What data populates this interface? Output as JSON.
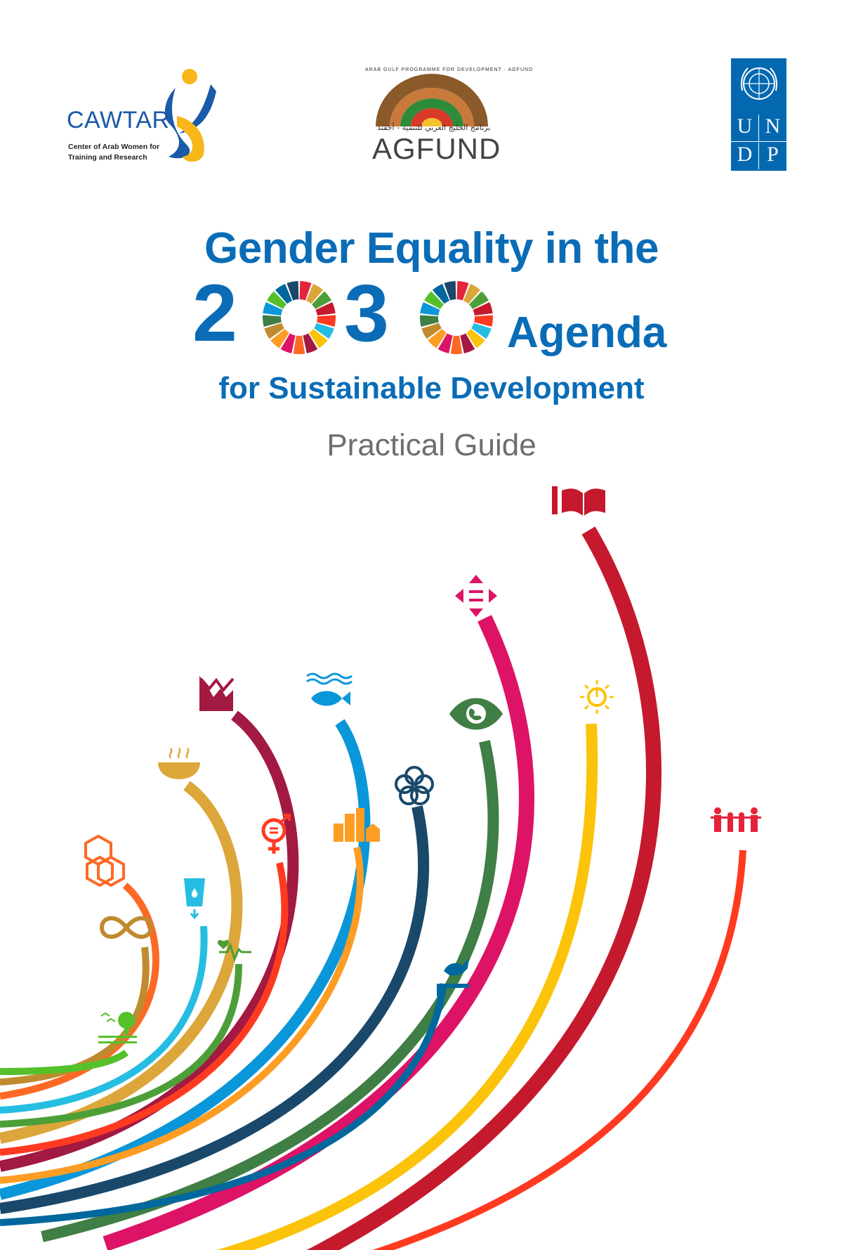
{
  "logos": {
    "cawtar": {
      "name": "CAWTAR",
      "subtitle_line1": "Center of Arab Women for",
      "subtitle_line2": "Training and Research",
      "colors": {
        "text": "#1a5aa8",
        "figure_blue": "#1a5aa8",
        "figure_yellow": "#f7b719"
      }
    },
    "agfund": {
      "name": "AGFUND",
      "arc_text": "ARAB GULF PROGRAMME FOR DEVELOPMENT · AGFUND",
      "arabic_text": "برنامج الخليج العربي للتنمية - أجفند"
    },
    "undp": {
      "letters": [
        "U",
        "N",
        "D",
        "P"
      ],
      "color": "#0468b1"
    }
  },
  "title": {
    "line1": "Gender Equality in the",
    "year_digit1": "2",
    "year_digit2": "3",
    "word_agenda": "Agenda",
    "line3": "for Sustainable Development"
  },
  "subtitle": "Practical Guide",
  "colors": {
    "title": "#0a6cb6",
    "subtitle": "#6d6e71"
  },
  "sdg_colors": [
    "#e5243b",
    "#dda63a",
    "#4c9f38",
    "#c5192d",
    "#ff3a21",
    "#26bde2",
    "#fcc30b",
    "#a21942",
    "#fd6925",
    "#dd1367",
    "#fd9d24",
    "#bf8b2e",
    "#3f7e44",
    "#0a97d9",
    "#56c02b",
    "#00689d",
    "#19486a"
  ],
  "rainbow_icons": [
    "life-on-land-icon",
    "responsible-consumption-icon",
    "climate-action-icon",
    "clean-water-icon",
    "good-health-icon",
    "zero-hunger-icon",
    "gender-equality-icon",
    "decent-work-icon",
    "sustainable-cities-icon",
    "life-below-water-icon",
    "partnerships-icon",
    "peace-justice-icon",
    "life-on-land-earth-icon",
    "reduced-inequalities-icon",
    "affordable-energy-icon",
    "quality-education-icon",
    "no-poverty-icon"
  ]
}
